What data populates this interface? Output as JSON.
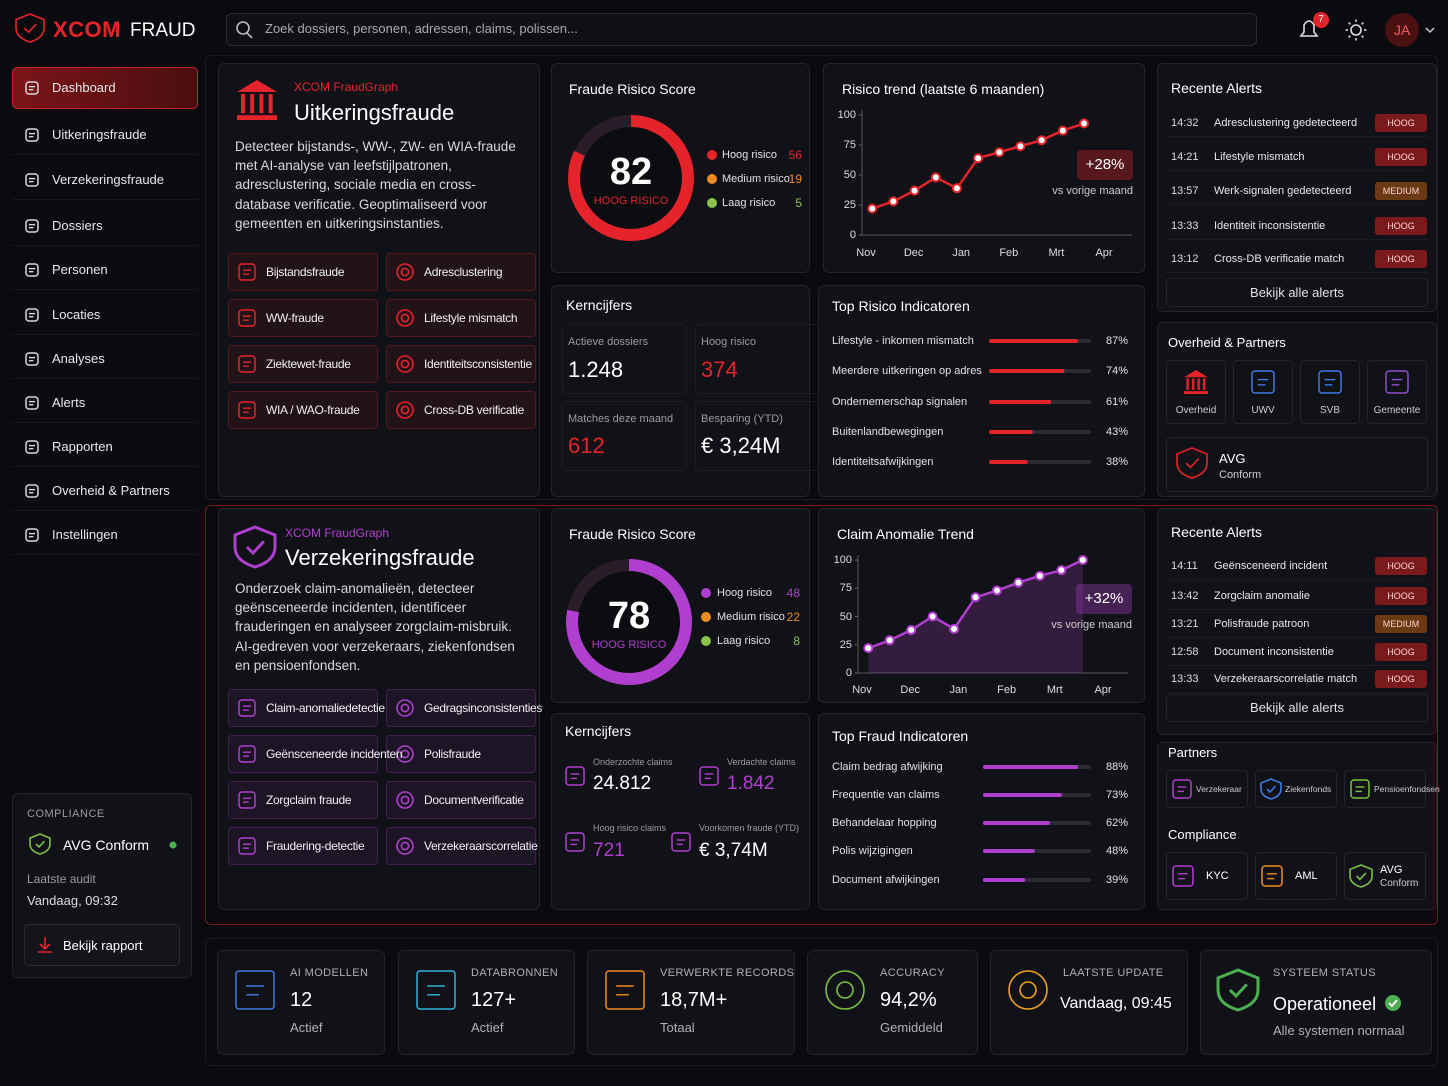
{
  "brand": {
    "name1": "XCOM",
    "name2": "FRAUD"
  },
  "search": "Zoek dossiers, personen, adressen, claims, polissen...",
  "notifications": 7,
  "user": "JA",
  "nav": [
    "Dashboard",
    "Uitkeringsfraude",
    "Verzekeringsfraude",
    "Dossiers",
    "Personen",
    "Locaties",
    "Analyses",
    "Alerts",
    "Rapporten",
    "Overheid & Partners",
    "Instellingen"
  ],
  "compliance": {
    "label": "COMPLIANCE",
    "status": "AVG Conform",
    "audit_label": "Laatste audit",
    "audit": "Vandaag, 09:32",
    "button": "Bekijk rapport"
  },
  "sections": [
    {
      "brand": "XCOM FraudGraph",
      "title": "Uitkeringsfraude",
      "color": "#e5232b",
      "description": "Detecteer bijstands-, WW-, ZW- en WIA-fraude met AI-analyse van leefstijlpatronen, adresclustering, sociale media en cross-database verificatie. Geoptimaliseerd voor gemeenten en uitkeringsinstanties.",
      "features": [
        "Bijstandsfraude",
        "Adresclustering",
        "WW-fraude",
        "Lifestyle mismatch",
        "Ziektewet-fraude",
        "Identiteitsconsistentie",
        "WIA / WAO-fraude",
        "Cross-DB verificatie"
      ],
      "score": {
        "title": "Fraude Risico Score",
        "value": 82,
        "label": "HOOG RISICO",
        "legend": [
          {
            "name": "Hoog risico",
            "value": 56,
            "color": "#e5232b"
          },
          {
            "name": "Medium risico",
            "value": 19,
            "color": "#f08a24"
          },
          {
            "name": "Laag risico",
            "value": 5,
            "color": "#8bc34a"
          }
        ]
      },
      "trend": {
        "title": "Risico trend (laatste 6 maanden)",
        "xlabels": [
          "Nov",
          "Dec",
          "Jan",
          "Feb",
          "Mrt",
          "Apr"
        ],
        "values": [
          22,
          28,
          37,
          48,
          39,
          64,
          69,
          74,
          79,
          87,
          93
        ],
        "ylim": [
          0,
          100
        ],
        "yticks": [
          0,
          25,
          50,
          75,
          100
        ],
        "change": "+28%",
        "change_label": "vs vorige maand"
      },
      "kpis": {
        "title": "Kerncijfers",
        "items": [
          {
            "label": "Actieve dossiers",
            "value": "1.248"
          },
          {
            "label": "Hoog risico",
            "value": "374",
            "accent": true
          },
          {
            "label": "Matches deze maand",
            "value": "612",
            "accent": true
          },
          {
            "label": "Besparing (YTD)",
            "value": "€ 3,24M"
          }
        ]
      },
      "indicators": {
        "title": "Top Risico Indicatoren",
        "names": [
          "Lifestyle - inkomen mismatch",
          "Meerdere uitkeringen op adres",
          "Ondernemerschap signalen",
          "Buitenlandbewegingen",
          "Identiteitsafwijkingen"
        ],
        "values": [
          87,
          74,
          61,
          43,
          38
        ],
        "value_labels": [
          "87%",
          "74%",
          "61%",
          "43%",
          "38%"
        ]
      },
      "alerts": {
        "title": "Recente Alerts",
        "items": [
          {
            "time": "14:32",
            "text": "Adresclustering gedetecteerd",
            "level": "HOOG",
            "color": "#7a1a1d"
          },
          {
            "time": "14:21",
            "text": "Lifestyle mismatch",
            "level": "HOOG",
            "color": "#7a1a1d"
          },
          {
            "time": "13:57",
            "text": "Werk-signalen gedetecteerd",
            "level": "MEDIUM",
            "color": "#6b3a12"
          },
          {
            "time": "13:33",
            "text": "Identiteit inconsistentie",
            "level": "HOOG",
            "color": "#7a1a1d"
          },
          {
            "time": "13:12",
            "text": "Cross-DB verificatie match",
            "level": "HOOG",
            "color": "#7a1a1d"
          }
        ],
        "link": "Bekijk alle alerts"
      },
      "partners": {
        "title": "Overheid & Partners",
        "items": [
          "Overheid",
          "UWV",
          "SVB",
          "Gemeente"
        ],
        "compliance": [
          {
            "title": "AVG",
            "subtitle": "Conform"
          }
        ]
      }
    },
    {
      "brand": "XCOM FraudGraph",
      "title": "Verzekeringsfraude",
      "color": "#b03fd0",
      "description": "Onderzoek claim-anomalieën, detecteer geënsceneerde incidenten, identificeer frauderingen en analyseer zorgclaim-misbruik. AI-gedreven voor verzekeraars, ziekenfondsen en pensioenfondsen.",
      "features": [
        "Claim-anomaliedetectie",
        "Gedragsinconsistenties",
        "Geënsceneerde incidenten",
        "Polisfraude",
        "Zorgclaim fraude",
        "Documentverificatie",
        "Fraudering-detectie",
        "Verzekeraarscorrelatie"
      ],
      "score": {
        "title": "Fraude Risico Score",
        "value": 78,
        "label": "HOOG RISICO",
        "legend": [
          {
            "name": "Hoog risico",
            "value": 48,
            "color": "#b03fd0"
          },
          {
            "name": "Medium risico",
            "value": 22,
            "color": "#f08a24"
          },
          {
            "name": "Laag risico",
            "value": 8,
            "color": "#8bc34a"
          }
        ]
      },
      "trend": {
        "title": "Claim Anomalie Trend",
        "xlabels": [
          "Nov",
          "Dec",
          "Jan",
          "Feb",
          "Mrt",
          "Apr"
        ],
        "values": [
          22,
          29,
          38,
          50,
          39,
          67,
          73,
          80,
          86,
          91,
          100
        ],
        "ylim": [
          0,
          100
        ],
        "yticks": [
          0,
          25,
          50,
          75,
          100
        ],
        "change": "+32%",
        "change_label": "vs vorige maand"
      },
      "kpis": {
        "title": "Kerncijfers",
        "items": [
          {
            "label": "Onderzochte claims",
            "value": "24.812"
          },
          {
            "label": "Verdachte claims",
            "value": "1.842",
            "accent": true
          },
          {
            "label": "Hoog risico claims",
            "value": "721",
            "accent": true
          },
          {
            "label": "Voorkomen fraude (YTD)",
            "value": "€ 3,74M"
          }
        ]
      },
      "indicators": {
        "title": "Top Fraud Indicatoren",
        "names": [
          "Claim bedrag afwijking",
          "Frequentie van claims",
          "Behandelaar hopping",
          "Polis wijzigingen",
          "Document afwijkingen"
        ],
        "values": [
          88,
          73,
          62,
          48,
          39
        ],
        "value_labels": [
          "88%",
          "73%",
          "62%",
          "48%",
          "39%"
        ]
      },
      "alerts": {
        "title": "Recente Alerts",
        "items": [
          {
            "time": "14:11",
            "text": "Geënsceneerd incident",
            "level": "HOOG",
            "color": "#7a1a1d"
          },
          {
            "time": "13:42",
            "text": "Zorgclaim anomalie",
            "level": "HOOG",
            "color": "#7a1a1d"
          },
          {
            "time": "13:21",
            "text": "Polisfraude patroon",
            "level": "MEDIUM",
            "color": "#6b3a12"
          },
          {
            "time": "12:58",
            "text": "Document inconsistentie",
            "level": "HOOG",
            "color": "#7a1a1d"
          },
          {
            "time": "13:33",
            "text": "Verzekeraarscorrelatie match",
            "level": "HOOG",
            "color": "#7a1a1d"
          }
        ],
        "link": "Bekijk alle alerts"
      },
      "partners": {
        "title": "Partners",
        "items": [
          "Verzekeraar",
          "Ziekenfonds",
          "Pensioenfondsen"
        ],
        "compliance_title": "Compliance",
        "compliance": [
          {
            "title": "KYC"
          },
          {
            "title": "AML"
          },
          {
            "title": "AVG",
            "subtitle": "Conform"
          }
        ]
      }
    }
  ],
  "stats": [
    {
      "label": "AI MODELLEN",
      "value": "12",
      "sub": "Actief",
      "color": "#3d7be0"
    },
    {
      "label": "DATABRONNEN",
      "value": "127+",
      "sub": "Actief",
      "color": "#2fb4d8"
    },
    {
      "label": "VERWERKTE RECORDS",
      "value": "18,7M+",
      "sub": "Totaal",
      "color": "#f08a24"
    },
    {
      "label": "ACCURACY",
      "value": "94,2%",
      "sub": "Gemiddeld",
      "color": "#7bc043"
    },
    {
      "label": "LAATSTE UPDATE",
      "value": "Vandaag, 09:45",
      "color": "#f0a020"
    },
    {
      "label": "SYSTEEM STATUS",
      "value": "Operationeel",
      "sub": "Alle systemen normaal",
      "color": "#4caf50"
    }
  ]
}
